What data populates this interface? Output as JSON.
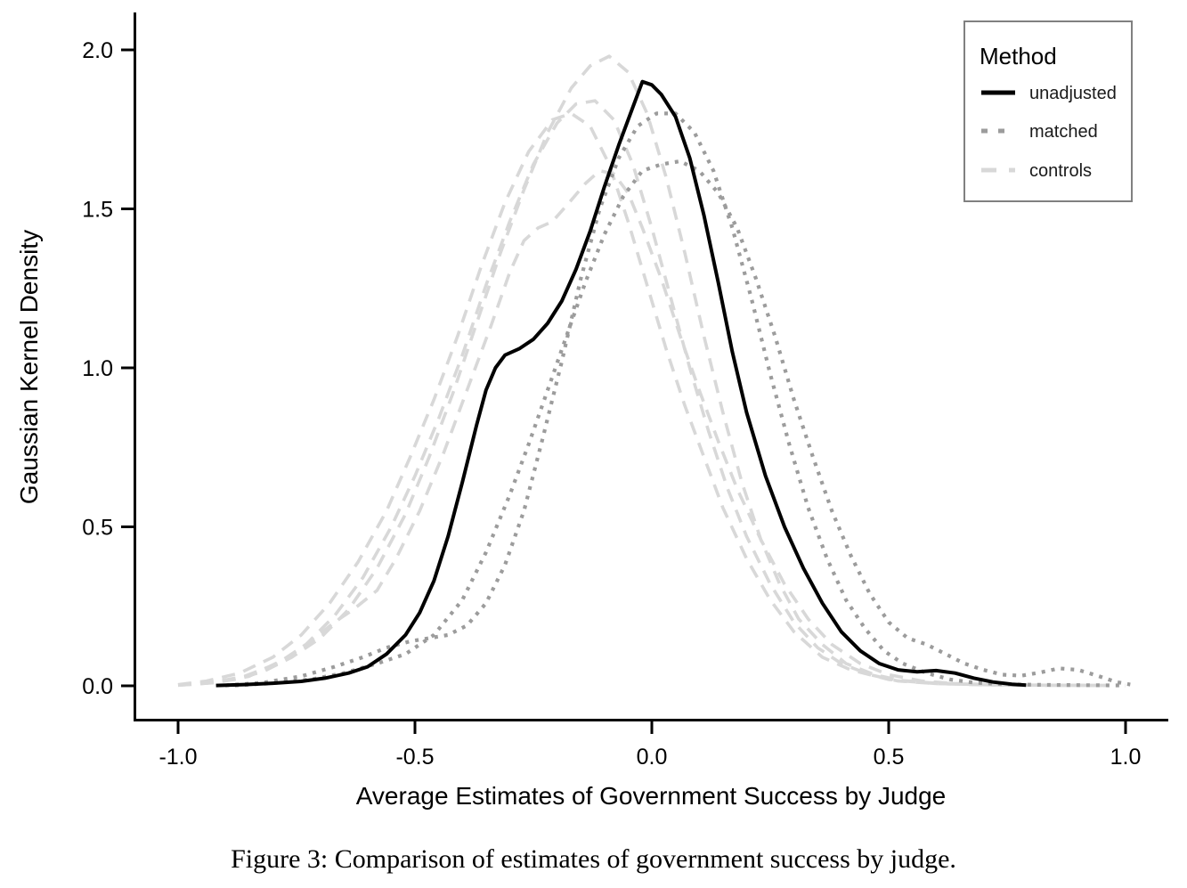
{
  "figure": {
    "caption": "Figure 3: Comparison of estimates of government success by judge."
  },
  "colors": {
    "unadjusted": "#000000",
    "matched": "#9c9c9c",
    "controls": "#d8d8d8",
    "axis": "#000000",
    "legend_border": "#808080",
    "background": "#ffffff"
  },
  "chart_data": {
    "type": "line",
    "title": "",
    "xlabel": "Average Estimates of Government Success by Judge",
    "ylabel": "Gaussian Kernel Density",
    "xlim": [
      -1.09,
      1.09
    ],
    "ylim": [
      0,
      2.07
    ],
    "grid": false,
    "x_ticks": [
      {
        "value": -1.0,
        "label": "-1.0"
      },
      {
        "value": -0.5,
        "label": "-0.5"
      },
      {
        "value": 0.0,
        "label": "0.0"
      },
      {
        "value": 0.5,
        "label": "0.5"
      },
      {
        "value": 1.0,
        "label": "1.0"
      }
    ],
    "y_ticks": [
      {
        "value": 0.0,
        "label": "0.0"
      },
      {
        "value": 0.5,
        "label": "0.5"
      },
      {
        "value": 1.0,
        "label": "1.0"
      },
      {
        "value": 1.5,
        "label": "1.5"
      },
      {
        "value": 2.0,
        "label": "2.0"
      }
    ],
    "legend": {
      "title": "Method",
      "position": "top-right",
      "entries": [
        {
          "label": "unadjusted",
          "dash": "solid",
          "color": "#000000"
        },
        {
          "label": "matched",
          "dash": "dotted",
          "color": "#9c9c9c"
        },
        {
          "label": "controls",
          "dash": "dashed",
          "color": "#d8d8d8"
        }
      ]
    },
    "series": [
      {
        "name": "unadjusted",
        "group": "unadjusted",
        "dash": "solid",
        "color": "#000000",
        "peak": {
          "x": -0.02,
          "density": 1.9
        },
        "points": [
          [
            -0.92,
            0.001
          ],
          [
            -0.86,
            0.004
          ],
          [
            -0.8,
            0.008
          ],
          [
            -0.74,
            0.014
          ],
          [
            -0.69,
            0.024
          ],
          [
            -0.64,
            0.04
          ],
          [
            -0.6,
            0.06
          ],
          [
            -0.56,
            0.1
          ],
          [
            -0.52,
            0.16
          ],
          [
            -0.49,
            0.23
          ],
          [
            -0.46,
            0.33
          ],
          [
            -0.43,
            0.47
          ],
          [
            -0.4,
            0.64
          ],
          [
            -0.37,
            0.82
          ],
          [
            -0.35,
            0.93
          ],
          [
            -0.33,
            1.0
          ],
          [
            -0.31,
            1.04
          ],
          [
            -0.28,
            1.06
          ],
          [
            -0.25,
            1.09
          ],
          [
            -0.22,
            1.14
          ],
          [
            -0.19,
            1.21
          ],
          [
            -0.16,
            1.31
          ],
          [
            -0.13,
            1.43
          ],
          [
            -0.1,
            1.57
          ],
          [
            -0.07,
            1.7
          ],
          [
            -0.04,
            1.82
          ],
          [
            -0.02,
            1.9
          ],
          [
            0.0,
            1.89
          ],
          [
            0.02,
            1.86
          ],
          [
            0.05,
            1.79
          ],
          [
            0.08,
            1.66
          ],
          [
            0.11,
            1.48
          ],
          [
            0.14,
            1.27
          ],
          [
            0.17,
            1.05
          ],
          [
            0.2,
            0.86
          ],
          [
            0.24,
            0.66
          ],
          [
            0.28,
            0.5
          ],
          [
            0.32,
            0.37
          ],
          [
            0.36,
            0.26
          ],
          [
            0.4,
            0.17
          ],
          [
            0.44,
            0.11
          ],
          [
            0.48,
            0.07
          ],
          [
            0.52,
            0.05
          ],
          [
            0.56,
            0.044
          ],
          [
            0.6,
            0.048
          ],
          [
            0.64,
            0.04
          ],
          [
            0.68,
            0.024
          ],
          [
            0.72,
            0.012
          ],
          [
            0.76,
            0.005
          ],
          [
            0.79,
            0.002
          ]
        ]
      },
      {
        "name": "matched-1",
        "group": "matched",
        "dash": "dotted",
        "color": "#9c9c9c",
        "peak": {
          "x": 0.04,
          "density": 1.8
        },
        "points": [
          [
            -0.9,
            0.001
          ],
          [
            -0.82,
            0.01
          ],
          [
            -0.74,
            0.03
          ],
          [
            -0.67,
            0.06
          ],
          [
            -0.61,
            0.09
          ],
          [
            -0.56,
            0.12
          ],
          [
            -0.51,
            0.14
          ],
          [
            -0.47,
            0.15
          ],
          [
            -0.43,
            0.16
          ],
          [
            -0.39,
            0.19
          ],
          [
            -0.35,
            0.26
          ],
          [
            -0.31,
            0.38
          ],
          [
            -0.27,
            0.55
          ],
          [
            -0.23,
            0.78
          ],
          [
            -0.19,
            1.02
          ],
          [
            -0.15,
            1.28
          ],
          [
            -0.11,
            1.5
          ],
          [
            -0.07,
            1.66
          ],
          [
            -0.03,
            1.76
          ],
          [
            0.01,
            1.8
          ],
          [
            0.05,
            1.8
          ],
          [
            0.09,
            1.74
          ],
          [
            0.13,
            1.62
          ],
          [
            0.17,
            1.44
          ],
          [
            0.21,
            1.22
          ],
          [
            0.25,
            0.98
          ],
          [
            0.29,
            0.76
          ],
          [
            0.33,
            0.56
          ],
          [
            0.37,
            0.4
          ],
          [
            0.41,
            0.27
          ],
          [
            0.45,
            0.18
          ],
          [
            0.49,
            0.11
          ],
          [
            0.53,
            0.07
          ],
          [
            0.58,
            0.04
          ],
          [
            0.63,
            0.02
          ],
          [
            0.68,
            0.01
          ],
          [
            0.74,
            0.005
          ],
          [
            0.82,
            0.003
          ],
          [
            0.92,
            0.002
          ],
          [
            1.0,
            0.001
          ]
        ]
      },
      {
        "name": "matched-2",
        "group": "matched",
        "dash": "dotted",
        "color": "#9c9c9c",
        "peak": {
          "x": 0.05,
          "density": 1.65
        },
        "points": [
          [
            -0.88,
            0.001
          ],
          [
            -0.8,
            0.008
          ],
          [
            -0.72,
            0.02
          ],
          [
            -0.65,
            0.04
          ],
          [
            -0.58,
            0.07
          ],
          [
            -0.52,
            0.1
          ],
          [
            -0.46,
            0.16
          ],
          [
            -0.4,
            0.27
          ],
          [
            -0.35,
            0.42
          ],
          [
            -0.3,
            0.6
          ],
          [
            -0.26,
            0.76
          ],
          [
            -0.22,
            0.93
          ],
          [
            -0.18,
            1.1
          ],
          [
            -0.14,
            1.27
          ],
          [
            -0.1,
            1.42
          ],
          [
            -0.06,
            1.54
          ],
          [
            -0.02,
            1.62
          ],
          [
            0.02,
            1.64
          ],
          [
            0.06,
            1.65
          ],
          [
            0.1,
            1.62
          ],
          [
            0.14,
            1.55
          ],
          [
            0.18,
            1.44
          ],
          [
            0.22,
            1.28
          ],
          [
            0.26,
            1.1
          ],
          [
            0.3,
            0.9
          ],
          [
            0.34,
            0.72
          ],
          [
            0.38,
            0.55
          ],
          [
            0.42,
            0.41
          ],
          [
            0.46,
            0.29
          ],
          [
            0.5,
            0.2
          ],
          [
            0.54,
            0.15
          ],
          [
            0.58,
            0.13
          ],
          [
            0.62,
            0.1
          ],
          [
            0.66,
            0.07
          ],
          [
            0.7,
            0.05
          ],
          [
            0.74,
            0.035
          ],
          [
            0.78,
            0.032
          ],
          [
            0.82,
            0.042
          ],
          [
            0.86,
            0.055
          ],
          [
            0.9,
            0.05
          ],
          [
            0.94,
            0.032
          ],
          [
            0.98,
            0.012
          ],
          [
            1.01,
            0.004
          ]
        ]
      },
      {
        "name": "controls-1",
        "group": "controls",
        "dash": "dashed",
        "color": "#d8d8d8",
        "peak": {
          "x": -0.09,
          "density": 1.98
        },
        "points": [
          [
            -1.0,
            0.002
          ],
          [
            -0.94,
            0.008
          ],
          [
            -0.88,
            0.02
          ],
          [
            -0.82,
            0.045
          ],
          [
            -0.76,
            0.09
          ],
          [
            -0.7,
            0.15
          ],
          [
            -0.64,
            0.24
          ],
          [
            -0.58,
            0.37
          ],
          [
            -0.52,
            0.54
          ],
          [
            -0.47,
            0.72
          ],
          [
            -0.42,
            0.92
          ],
          [
            -0.37,
            1.14
          ],
          [
            -0.32,
            1.36
          ],
          [
            -0.27,
            1.56
          ],
          [
            -0.22,
            1.74
          ],
          [
            -0.17,
            1.88
          ],
          [
            -0.13,
            1.95
          ],
          [
            -0.09,
            1.98
          ],
          [
            -0.05,
            1.93
          ],
          [
            -0.01,
            1.8
          ],
          [
            0.03,
            1.6
          ],
          [
            0.07,
            1.36
          ],
          [
            0.11,
            1.1
          ],
          [
            0.15,
            0.86
          ],
          [
            0.19,
            0.64
          ],
          [
            0.23,
            0.46
          ],
          [
            0.27,
            0.32
          ],
          [
            0.31,
            0.21
          ],
          [
            0.36,
            0.13
          ],
          [
            0.41,
            0.07
          ],
          [
            0.47,
            0.035
          ],
          [
            0.53,
            0.015
          ],
          [
            0.6,
            0.007
          ],
          [
            0.7,
            0.003
          ],
          [
            0.82,
            0.002
          ],
          [
            0.96,
            0.001
          ]
        ]
      },
      {
        "name": "controls-2",
        "group": "controls",
        "dash": "dashed",
        "color": "#d8d8d8",
        "peak": {
          "x": -0.14,
          "density": 1.84
        },
        "points": [
          [
            -1.0,
            0.003
          ],
          [
            -0.93,
            0.01
          ],
          [
            -0.86,
            0.03
          ],
          [
            -0.79,
            0.07
          ],
          [
            -0.73,
            0.13
          ],
          [
            -0.67,
            0.22
          ],
          [
            -0.61,
            0.34
          ],
          [
            -0.55,
            0.5
          ],
          [
            -0.5,
            0.66
          ],
          [
            -0.45,
            0.84
          ],
          [
            -0.4,
            1.04
          ],
          [
            -0.35,
            1.26
          ],
          [
            -0.3,
            1.46
          ],
          [
            -0.25,
            1.64
          ],
          [
            -0.2,
            1.77
          ],
          [
            -0.16,
            1.83
          ],
          [
            -0.12,
            1.84
          ],
          [
            -0.08,
            1.78
          ],
          [
            -0.04,
            1.64
          ],
          [
            0.0,
            1.44
          ],
          [
            0.04,
            1.22
          ],
          [
            0.08,
            1.0
          ],
          [
            0.12,
            0.8
          ],
          [
            0.16,
            0.62
          ],
          [
            0.2,
            0.47
          ],
          [
            0.25,
            0.32
          ],
          [
            0.3,
            0.2
          ],
          [
            0.35,
            0.12
          ],
          [
            0.4,
            0.07
          ],
          [
            0.46,
            0.035
          ],
          [
            0.52,
            0.015
          ],
          [
            0.6,
            0.007
          ],
          [
            0.72,
            0.003
          ],
          [
            0.85,
            0.002
          ],
          [
            0.98,
            0.001
          ]
        ]
      },
      {
        "name": "controls-3",
        "group": "controls",
        "dash": "dashed",
        "color": "#d8d8d8",
        "peak": {
          "x": -0.11,
          "density": 1.62
        },
        "points": [
          [
            -1.0,
            0.002
          ],
          [
            -0.92,
            0.01
          ],
          [
            -0.85,
            0.03
          ],
          [
            -0.78,
            0.08
          ],
          [
            -0.72,
            0.14
          ],
          [
            -0.67,
            0.2
          ],
          [
            -0.63,
            0.24
          ],
          [
            -0.58,
            0.3
          ],
          [
            -0.54,
            0.4
          ],
          [
            -0.49,
            0.55
          ],
          [
            -0.44,
            0.73
          ],
          [
            -0.39,
            0.93
          ],
          [
            -0.34,
            1.13
          ],
          [
            -0.3,
            1.3
          ],
          [
            -0.27,
            1.4
          ],
          [
            -0.24,
            1.44
          ],
          [
            -0.21,
            1.46
          ],
          [
            -0.18,
            1.51
          ],
          [
            -0.14,
            1.58
          ],
          [
            -0.11,
            1.62
          ],
          [
            -0.08,
            1.61
          ],
          [
            -0.05,
            1.55
          ],
          [
            -0.02,
            1.44
          ],
          [
            0.02,
            1.28
          ],
          [
            0.06,
            1.1
          ],
          [
            0.1,
            0.93
          ],
          [
            0.14,
            0.77
          ],
          [
            0.18,
            0.62
          ],
          [
            0.23,
            0.46
          ],
          [
            0.28,
            0.32
          ],
          [
            0.33,
            0.21
          ],
          [
            0.38,
            0.13
          ],
          [
            0.44,
            0.07
          ],
          [
            0.5,
            0.035
          ],
          [
            0.57,
            0.015
          ],
          [
            0.65,
            0.006
          ],
          [
            0.78,
            0.002
          ],
          [
            0.95,
            0.001
          ]
        ]
      },
      {
        "name": "controls-4",
        "group": "controls",
        "dash": "dashed",
        "color": "#d8d8d8",
        "peak": {
          "x": -0.17,
          "density": 1.8
        },
        "points": [
          [
            -1.0,
            0.004
          ],
          [
            -0.94,
            0.015
          ],
          [
            -0.87,
            0.04
          ],
          [
            -0.8,
            0.09
          ],
          [
            -0.74,
            0.16
          ],
          [
            -0.68,
            0.26
          ],
          [
            -0.62,
            0.39
          ],
          [
            -0.56,
            0.55
          ],
          [
            -0.51,
            0.72
          ],
          [
            -0.46,
            0.9
          ],
          [
            -0.41,
            1.1
          ],
          [
            -0.36,
            1.32
          ],
          [
            -0.31,
            1.52
          ],
          [
            -0.26,
            1.68
          ],
          [
            -0.21,
            1.78
          ],
          [
            -0.17,
            1.8
          ],
          [
            -0.13,
            1.76
          ],
          [
            -0.09,
            1.64
          ],
          [
            -0.05,
            1.46
          ],
          [
            -0.01,
            1.26
          ],
          [
            0.03,
            1.06
          ],
          [
            0.07,
            0.88
          ],
          [
            0.11,
            0.72
          ],
          [
            0.15,
            0.56
          ],
          [
            0.2,
            0.4
          ],
          [
            0.25,
            0.27
          ],
          [
            0.3,
            0.17
          ],
          [
            0.36,
            0.09
          ],
          [
            0.42,
            0.05
          ],
          [
            0.5,
            0.02
          ],
          [
            0.6,
            0.008
          ],
          [
            0.75,
            0.003
          ],
          [
            0.9,
            0.001
          ]
        ]
      }
    ]
  }
}
